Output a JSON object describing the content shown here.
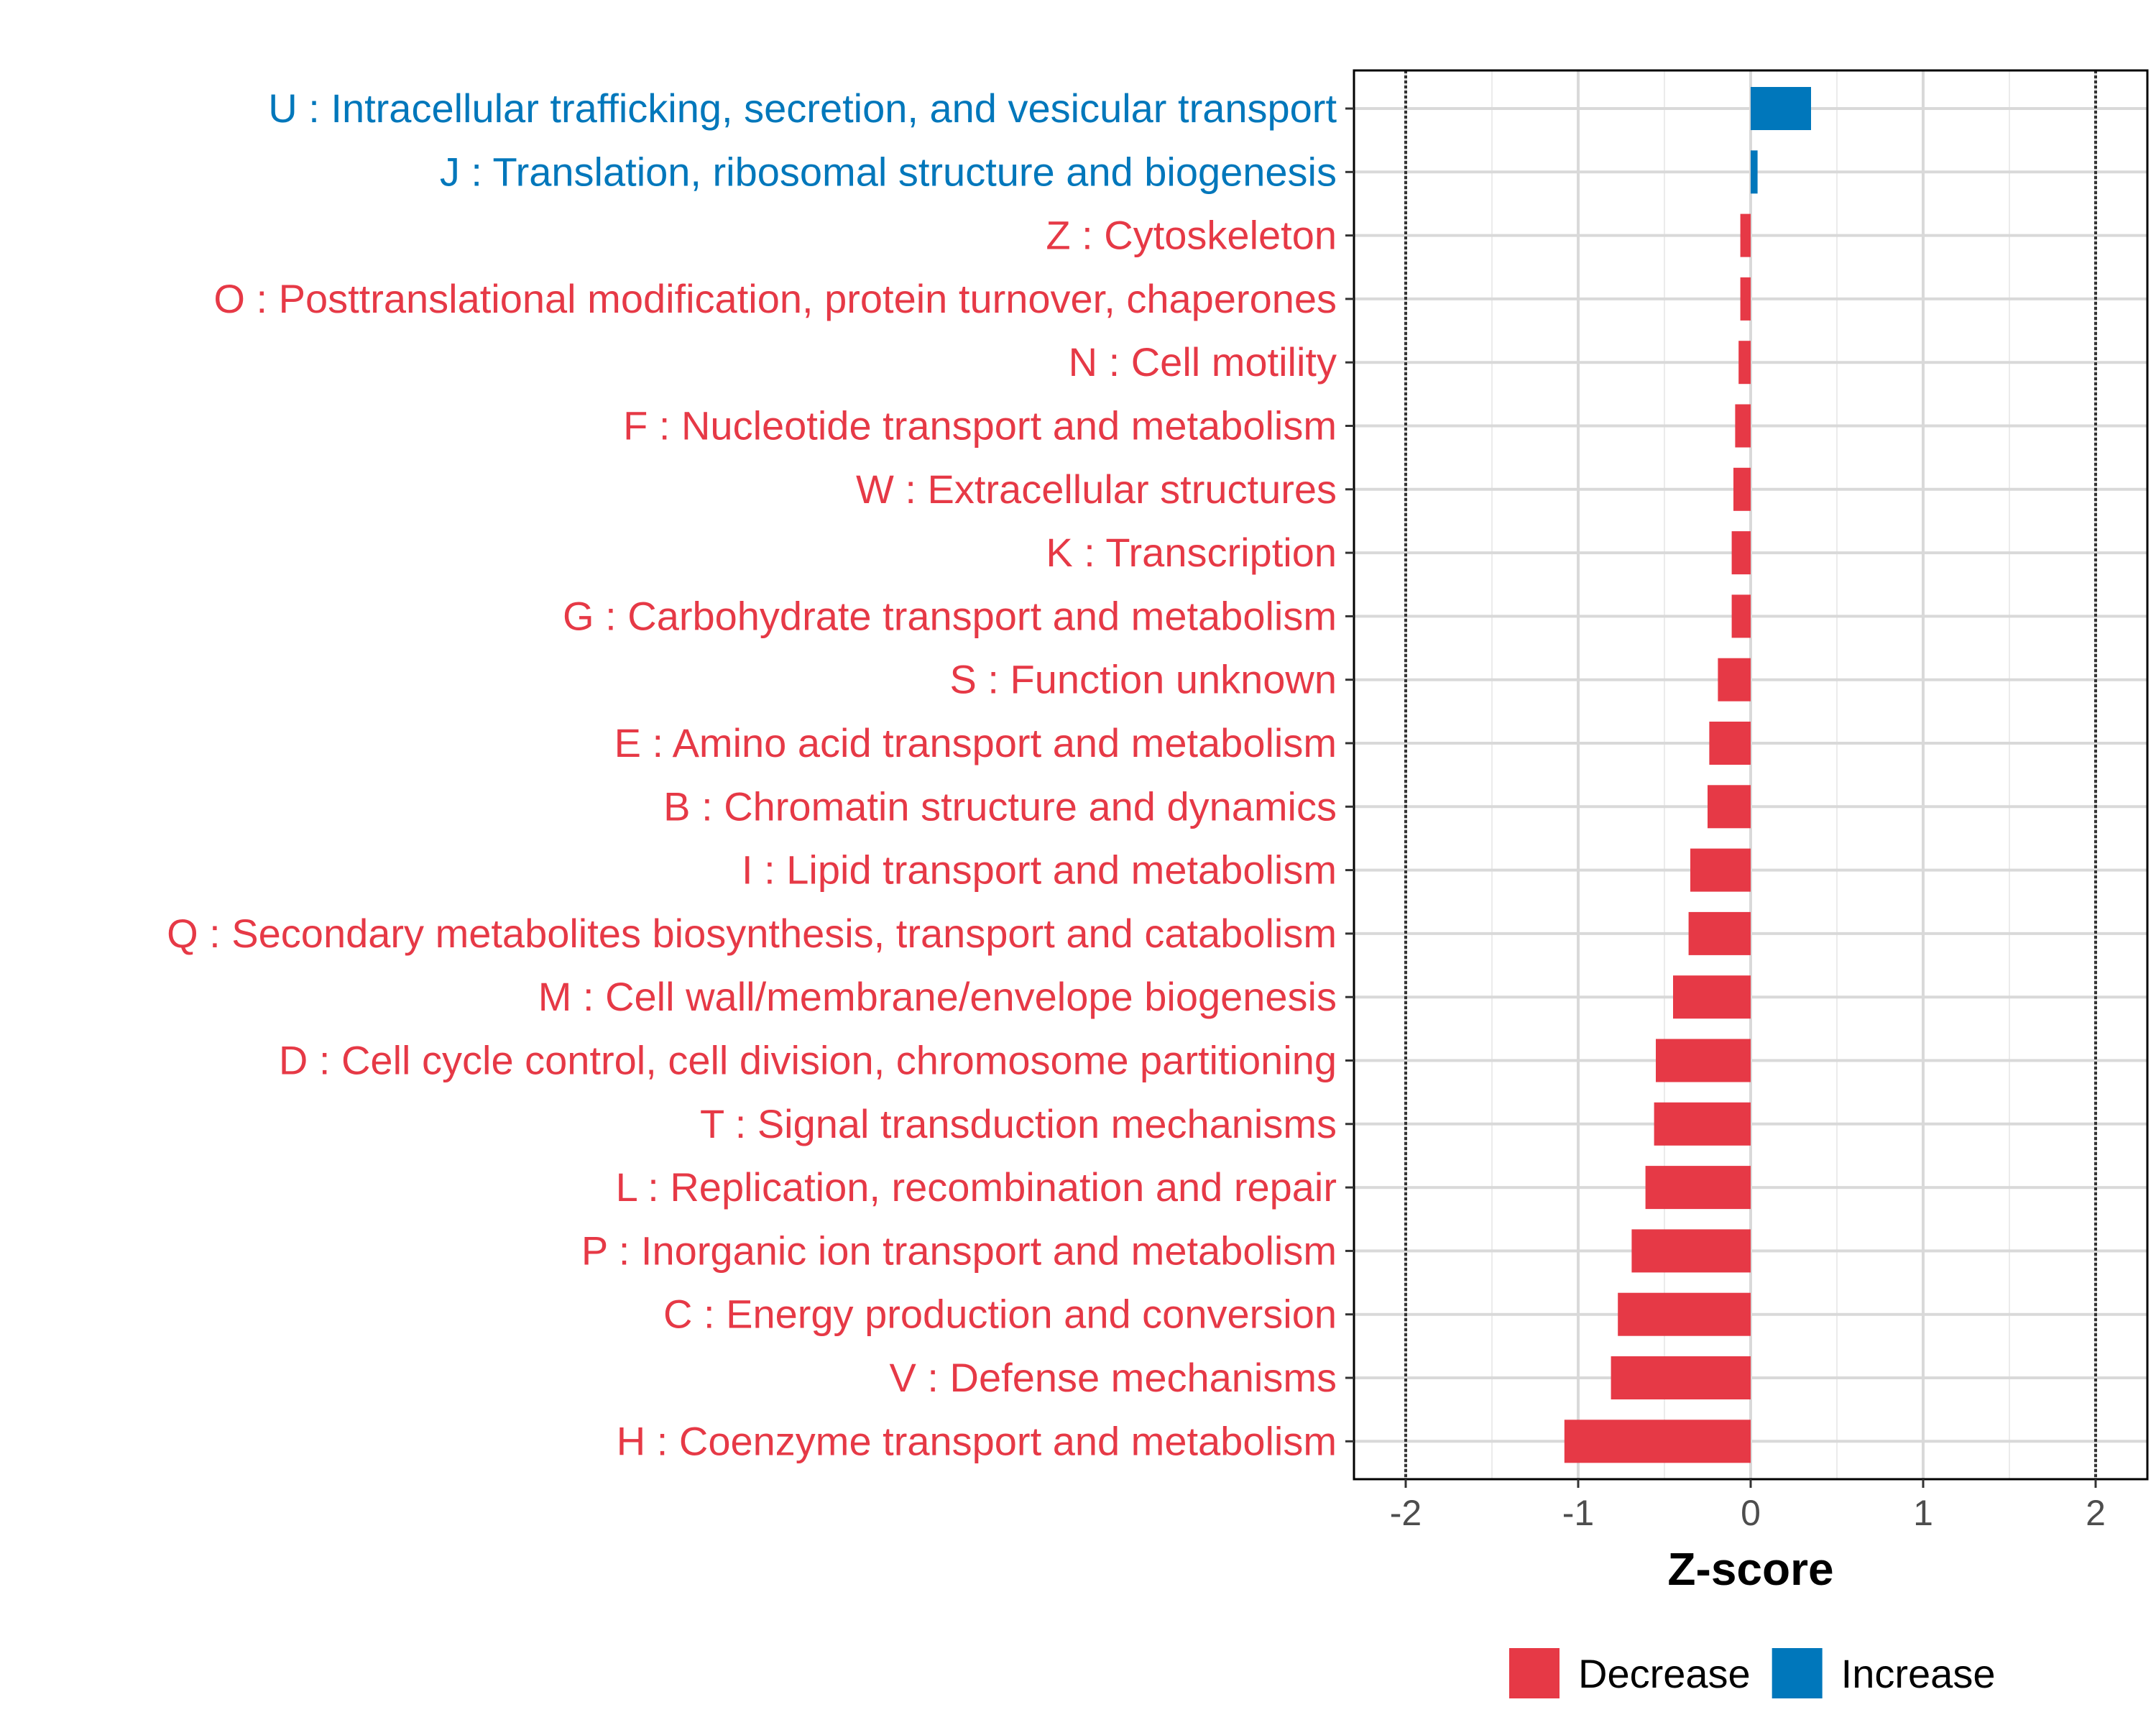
{
  "chart_data": {
    "type": "bar",
    "orientation": "horizontal",
    "xlabel": "Z-score",
    "xlim": [
      -2.3,
      2.3
    ],
    "xticks": [
      -2,
      -1,
      0,
      1,
      2
    ],
    "xtick_labels": [
      "-2",
      "-1",
      "0",
      "1",
      "2"
    ],
    "reference_lines": [
      -2,
      2
    ],
    "grid": true,
    "legend_position": "bottom",
    "colors": {
      "Decrease": "#e63946",
      "Increase": "#0077bb"
    },
    "legend": [
      {
        "name": "Decrease",
        "color": "#e63946"
      },
      {
        "name": "Increase",
        "color": "#0077bb"
      }
    ],
    "categories": [
      "U : Intracellular trafficking, secretion, and vesicular transport",
      "J : Translation, ribosomal structure and biogenesis",
      "Z : Cytoskeleton",
      "O : Posttranslational modification, protein turnover, chaperones",
      "N : Cell motility",
      "F : Nucleotide transport and metabolism",
      "W : Extracellular structures",
      "K : Transcription",
      "G : Carbohydrate transport and metabolism",
      "S : Function unknown",
      "E : Amino acid transport and metabolism",
      "B : Chromatin structure and dynamics",
      "I : Lipid transport and metabolism",
      "Q : Secondary metabolites biosynthesis, transport and catabolism",
      "M : Cell wall/membrane/envelope biogenesis",
      "D : Cell cycle control, cell division, chromosome partitioning",
      "T : Signal transduction mechanisms",
      "L : Replication, recombination and repair",
      "P : Inorganic ion transport and metabolism",
      "C : Energy production and conversion",
      "V : Defense mechanisms",
      "H : Coenzyme transport and metabolism"
    ],
    "values": [
      0.35,
      0.04,
      -0.06,
      -0.06,
      -0.07,
      -0.09,
      -0.1,
      -0.11,
      -0.11,
      -0.19,
      -0.24,
      -0.25,
      -0.35,
      -0.36,
      -0.45,
      -0.55,
      -0.56,
      -0.61,
      -0.69,
      -0.77,
      -0.81,
      -1.08
    ],
    "groups": [
      "Increase",
      "Increase",
      "Decrease",
      "Decrease",
      "Decrease",
      "Decrease",
      "Decrease",
      "Decrease",
      "Decrease",
      "Decrease",
      "Decrease",
      "Decrease",
      "Decrease",
      "Decrease",
      "Decrease",
      "Decrease",
      "Decrease",
      "Decrease",
      "Decrease",
      "Decrease",
      "Decrease",
      "Decrease"
    ]
  }
}
